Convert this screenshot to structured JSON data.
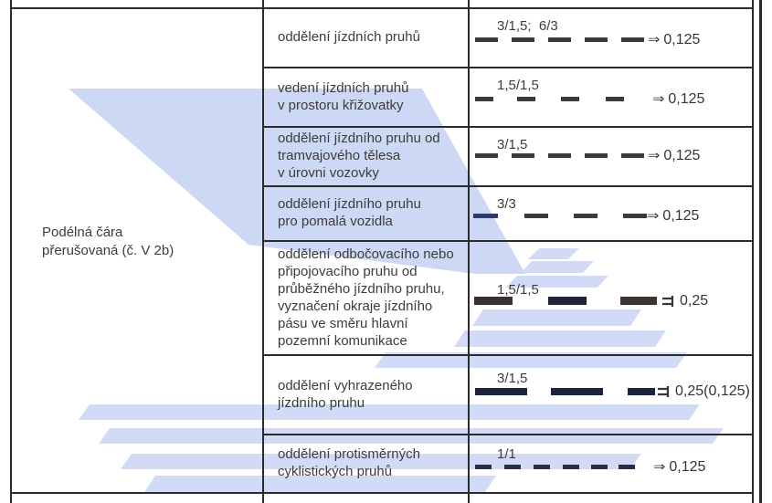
{
  "left_cell": "Podélná čára\npřerušovaná (č. V 2b)",
  "symbols": {
    "double_arrow": "⇒"
  },
  "colors": {
    "watermark": "#cdd8f4",
    "border": "#2b2b2b",
    "text": "#3c3c3c",
    "dash_default": "#3a3a3a"
  },
  "rows": [
    {
      "use": "oddělení jízdních pruhů",
      "dimension": "3/1,5;  6/3",
      "symbol": "double-arrow",
      "line_width": "0,125",
      "dashes": {
        "widths": [
          25,
          25,
          25,
          25,
          25
        ],
        "gaps": [
          15,
          15,
          15,
          15
        ],
        "thickness": 5,
        "color": "#3a3a3a"
      }
    },
    {
      "use": "vedení jízdních pruhů\nv prostoru křižovatky",
      "dimension": "1,5/1,5",
      "symbol": "double-arrow",
      "line_width": "0,125",
      "dashes": {
        "widths": [
          20,
          20,
          20,
          20
        ],
        "gaps": [
          26,
          28,
          29
        ],
        "thickness": 5,
        "color": "#3a3a3a"
      }
    },
    {
      "use": "oddělení jízdního pruhu od\ntramvajového tělesa\nv úrovni vozovky",
      "dimension": "3/1,5",
      "symbol": "double-arrow",
      "line_width": "0,125",
      "dashes": {
        "widths": [
          25,
          25,
          25,
          25,
          25
        ],
        "gaps": [
          15,
          15,
          15,
          15
        ],
        "thickness": 5,
        "color": "#3a3a3a"
      }
    },
    {
      "use": "oddělení jízdního pruhu\npro pomalá vozidla",
      "dimension": "3/3",
      "symbol": "double-arrow",
      "line_width": "0,125",
      "dashes": {
        "widths": [
          27,
          26,
          26,
          26
        ],
        "gaps": [
          29,
          28,
          28
        ],
        "thickness": 5,
        "color": "#3a3a3a",
        "colors": [
          "#2d3a68",
          "#3a3a3a",
          "#3a3a3a",
          "#3a3a3a"
        ]
      }
    },
    {
      "use": "oddělení odbočovacího nebo\npřipojovacího pruhu od\nprůběžného jízdního pruhu,\nvyznačení okraje jízdního\npásu ve směru hlavní\npozemní komunikace",
      "dimension": "1,5/1,5",
      "symbol": "bracket",
      "line_width": "0,25",
      "dashes": {
        "widths": [
          42,
          42,
          40
        ],
        "gaps": [
          39,
          37
        ],
        "thickness": 9,
        "color": "#32303a",
        "colors": [
          "#3b3134",
          "#20263d",
          "#3d332e"
        ]
      }
    },
    {
      "use": "oddělení vyhrazeného\njízdního pruhu",
      "dimension": "3/1,5",
      "symbol": "bracket",
      "line_width": "0,25(0,125)",
      "dashes": {
        "widths": [
          57,
          57,
          30
        ],
        "gaps": [
          26,
          27
        ],
        "thickness": 8,
        "color": "#1d2440"
      }
    },
    {
      "use": "oddělení protisměrných\ncyklistických pruhů",
      "dimension": "1/1",
      "symbol": "double-arrow",
      "line_width": "0,125",
      "dashes": {
        "widths": [
          18,
          18,
          18,
          18,
          18,
          18
        ],
        "gaps": [
          14,
          14,
          14,
          13,
          12
        ],
        "thickness": 5,
        "color": "#262e4e"
      }
    }
  ]
}
